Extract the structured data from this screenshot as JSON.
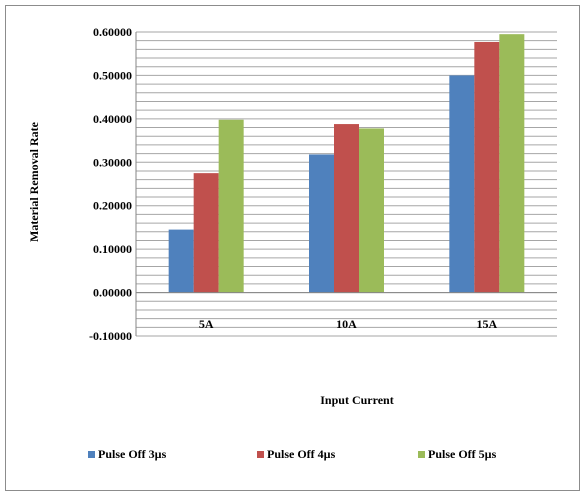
{
  "chart_data": {
    "type": "bar",
    "categories": [
      "5A",
      "10A",
      "15A"
    ],
    "series": [
      {
        "name": "Pulse Off 3µs",
        "values": [
          0.145,
          0.318,
          0.5
        ],
        "color": "#4f81bd"
      },
      {
        "name": "Pulse Off 4µs",
        "values": [
          0.275,
          0.388,
          0.577
        ],
        "color": "#c0504d"
      },
      {
        "name": "Pulse Off 5µs",
        "values": [
          0.398,
          0.378,
          0.595
        ],
        "color": "#9bbb59"
      }
    ],
    "xlabel": "Input Current",
    "ylabel": "Material  Removal  Rate",
    "ylim": [
      -0.1,
      0.6
    ],
    "yticks": [
      "0.60000",
      "0.50000",
      "0.40000",
      "0.30000",
      "0.20000",
      "0.10000",
      "0.00000",
      "-0.10000"
    ],
    "grid": true,
    "legend_position": "bottom"
  }
}
